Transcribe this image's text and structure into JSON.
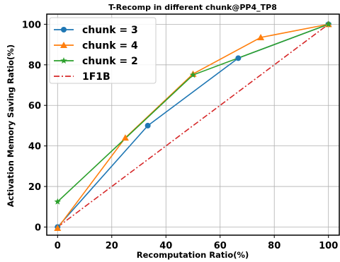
{
  "chart_data": {
    "type": "line",
    "title": "T-Recomp in different chunk@PP4_TP8",
    "xlabel": "Recomputation Ratio(%)",
    "ylabel": "Activation Memory Saving Ratio(%)",
    "xlim": [
      -4,
      104
    ],
    "ylim": [
      -4,
      105
    ],
    "xticks": [
      0,
      20,
      40,
      60,
      80,
      100
    ],
    "yticks": [
      0,
      20,
      40,
      60,
      80,
      100
    ],
    "grid": true,
    "legend_position": "top-left",
    "series": [
      {
        "name": "chunk = 3",
        "color": "#1f77b4",
        "marker": "circle",
        "style": "solid",
        "x": [
          0,
          33.3,
          66.7,
          100
        ],
        "y": [
          0,
          50,
          83.3,
          100
        ]
      },
      {
        "name": "chunk = 4",
        "color": "#ff7f0e",
        "marker": "triangle",
        "style": "solid",
        "x": [
          0,
          25,
          50,
          75,
          100
        ],
        "y": [
          -0.5,
          44,
          75.5,
          93.5,
          100
        ]
      },
      {
        "name": "chunk = 2",
        "color": "#2ca02c",
        "marker": "star",
        "style": "solid",
        "x": [
          0,
          50,
          100
        ],
        "y": [
          12.5,
          75,
          100
        ]
      },
      {
        "name": "1F1B",
        "color": "#d62728",
        "marker": "none",
        "style": "dashdot",
        "x": [
          0,
          100
        ],
        "y": [
          0,
          100
        ]
      }
    ]
  }
}
